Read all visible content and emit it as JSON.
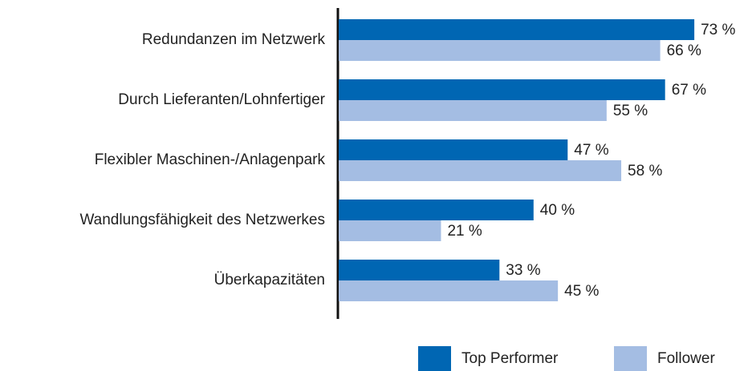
{
  "chart_data": {
    "type": "hbar",
    "categories": [
      "Redundanzen im Netzwerk",
      "Durch Lieferanten/Lohnfertiger",
      "Flexibler Maschinen-/Anlagenpark",
      "Wandlungsfähigkeit des Netzwerkes",
      "Überkapazitäten"
    ],
    "series": [
      {
        "name": "Top Performer",
        "color": "#0066b3",
        "values": [
          73,
          67,
          47,
          40,
          33
        ],
        "value_labels": [
          "73 %",
          "67 %",
          "47 %",
          "40 %",
          "33 %"
        ]
      },
      {
        "name": "Follower",
        "color": "#a4bde3",
        "values": [
          66,
          55,
          58,
          21,
          45
        ],
        "value_labels": [
          "66 %",
          "55 %",
          "58 %",
          "21 %",
          "45 %"
        ]
      }
    ],
    "legend": "bottom-right"
  }
}
